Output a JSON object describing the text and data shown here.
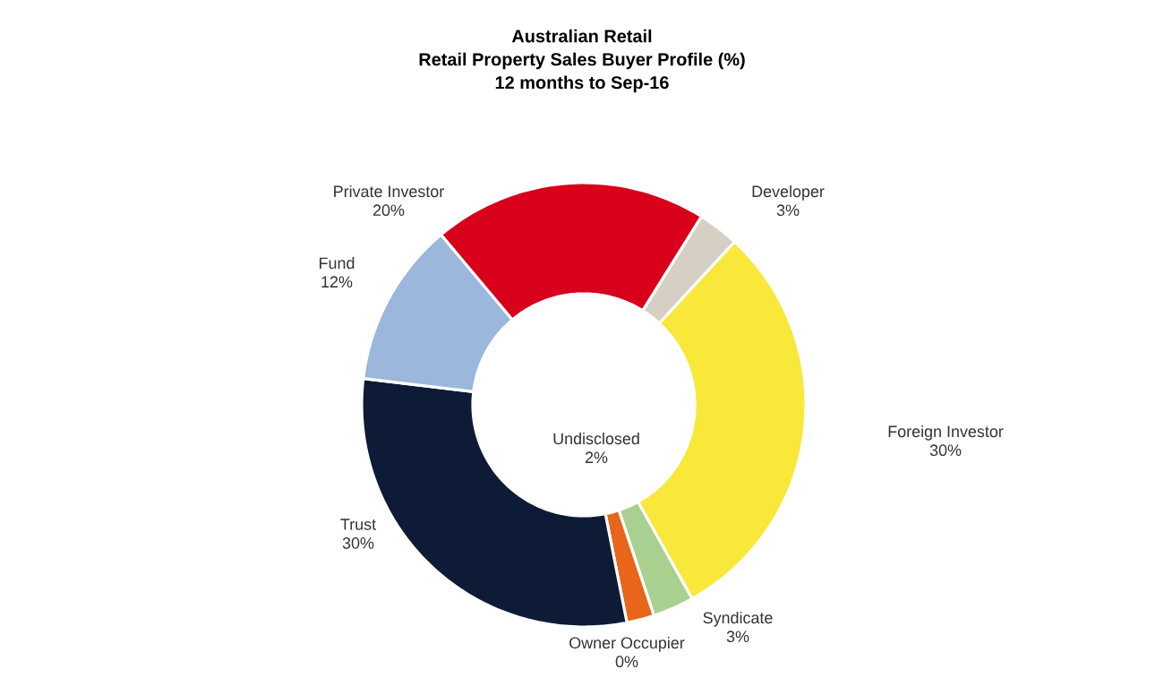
{
  "chart_data": {
    "type": "donut",
    "title": "Australian Retail\nRetail Property Sales Buyer Profile (%)\n12 months to Sep-16",
    "categories": [
      "Developer",
      "Foreign Investor",
      "Syndicate",
      "Undisclosed",
      "Owner Occupier",
      "Trust",
      "Fund",
      "Private Investor"
    ],
    "values": [
      3,
      30,
      3,
      2,
      0,
      30,
      12,
      20
    ],
    "value_labels": [
      "3%",
      "30%",
      "3%",
      "2%",
      "0%",
      "30%",
      "12%",
      "20%"
    ],
    "colors": [
      "#d6d0c4",
      "#f9e73a",
      "#a9d08e",
      "#e8651a",
      "#7f7f7f",
      "#0d1b36",
      "#9bb7db",
      "#d9001b"
    ]
  }
}
